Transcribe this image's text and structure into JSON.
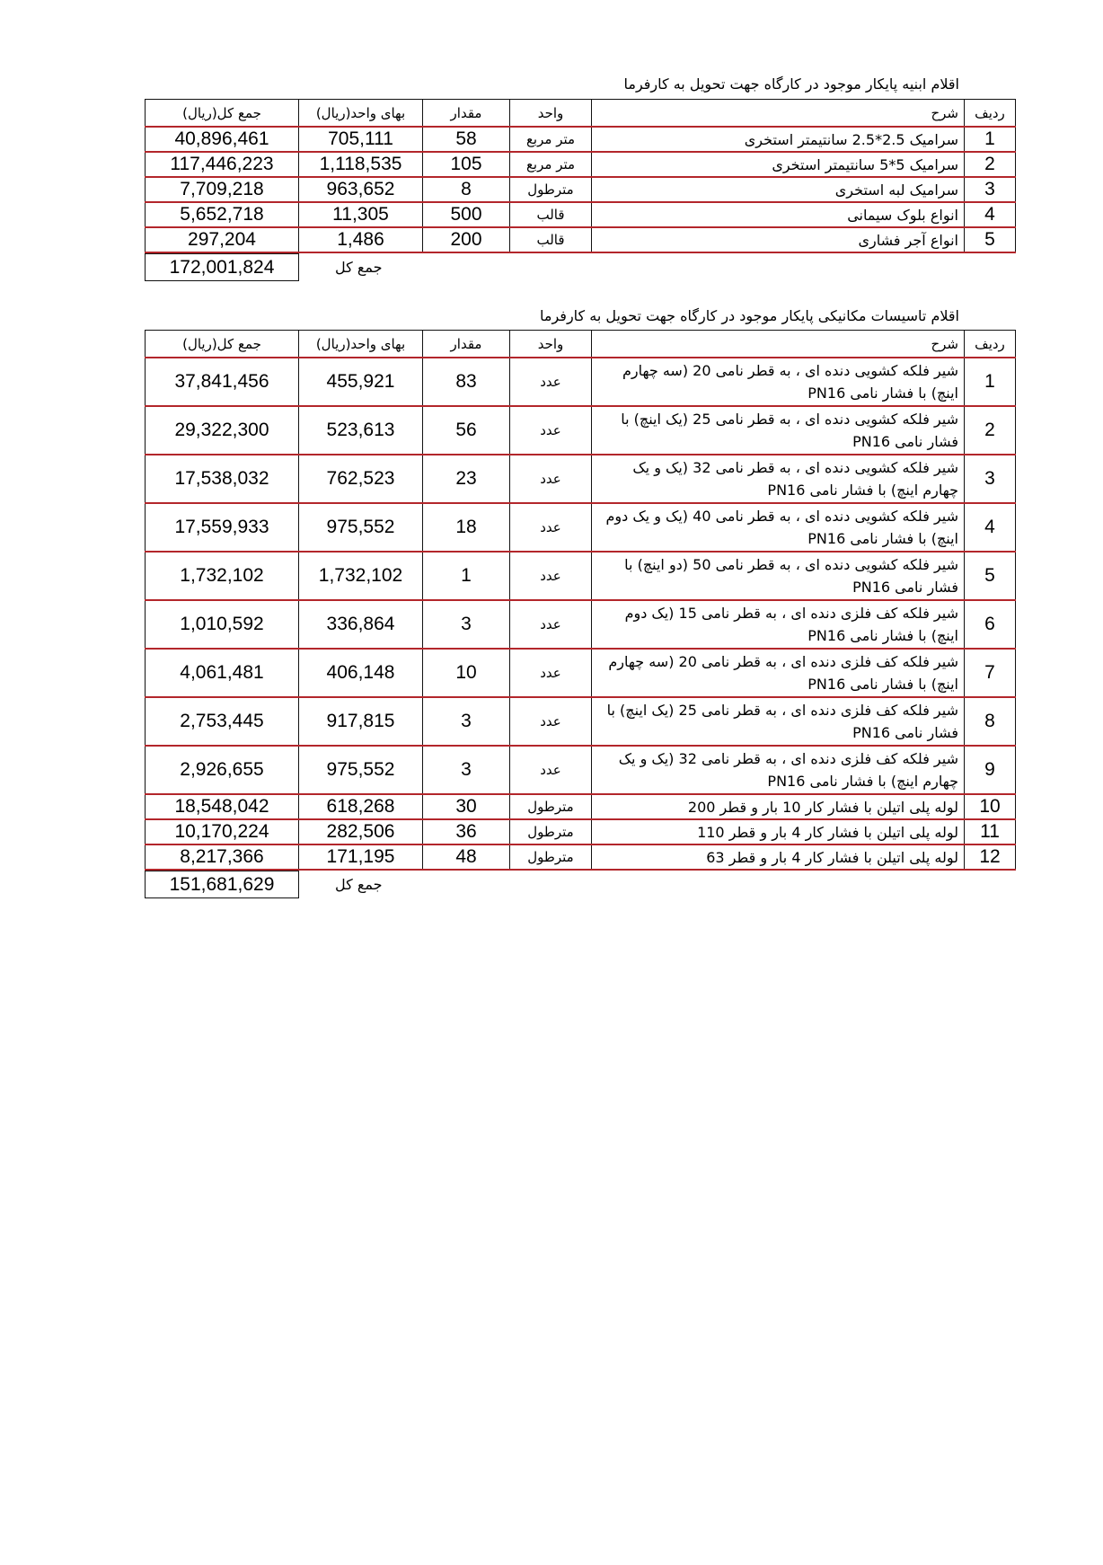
{
  "table1": {
    "title": "اقلام ابنیه پایکار موجود در کارگاه جهت تحویل به کارفرما",
    "headers": {
      "radif": "ردیف",
      "desc": "شرح",
      "unit": "واحد",
      "qty": "مقدار",
      "unit_price": "بهای واحد(ریال)",
      "total": "جمع کل(ریال)"
    },
    "rows": [
      {
        "radif": "1",
        "desc": "سرامیک 2.5*2.5 سانتیمتر استخری",
        "unit": "متر مربع",
        "qty": "58",
        "unit_price": "705,111",
        "total": "40,896,461"
      },
      {
        "radif": "2",
        "desc": "سرامیک 5*5 سانتیمتر استخری",
        "unit": "متر مربع",
        "qty": "105",
        "unit_price": "1,118,535",
        "total": "117,446,223"
      },
      {
        "radif": "3",
        "desc": "سرامیک لبه استخری",
        "unit": "مترطول",
        "qty": "8",
        "unit_price": "963,652",
        "total": "7,709,218"
      },
      {
        "radif": "4",
        "desc": "انواع بلوک سیمانی",
        "unit": "قالب",
        "qty": "500",
        "unit_price": "11,305",
        "total": "5,652,718"
      },
      {
        "radif": "5",
        "desc": "انواع آجر فشاری",
        "unit": "قالب",
        "qty": "200",
        "unit_price": "1,486",
        "total": "297,204"
      }
    ],
    "grand_total_label": "جمع کل",
    "grand_total": "172,001,824"
  },
  "table2": {
    "title": "اقلام تاسیسات مکانیکی پایکار موجود در کارگاه جهت تحویل به کارفرما",
    "headers": {
      "radif": "ردیف",
      "desc": "شرح",
      "unit": "واحد",
      "qty": "مقدار",
      "unit_price": "بهای واحد(ریال)",
      "total": "جمع کل(ریال)"
    },
    "rows": [
      {
        "radif": "1",
        "desc": "شیر فلکه کشویی دنده ای ، به قطر نامی 20 (سه چهارم اینچ) با فشار نامی PN16",
        "unit": "عدد",
        "qty": "83",
        "unit_price": "455,921",
        "total": "37,841,456"
      },
      {
        "radif": "2",
        "desc": "شیر فلکه کشویی دنده ای ، به قطر نامی 25 (یک اینچ) با فشار نامی PN16",
        "unit": "عدد",
        "qty": "56",
        "unit_price": "523,613",
        "total": "29,322,300"
      },
      {
        "radif": "3",
        "desc": "شیر فلکه کشویی دنده ای ، به قطر نامی 32 (یک و یک چهارم اینچ) با فشار نامی PN16",
        "unit": "عدد",
        "qty": "23",
        "unit_price": "762,523",
        "total": "17,538,032"
      },
      {
        "radif": "4",
        "desc": "شیر فلکه کشویی دنده ای ، به قطر نامی 40 (یک و یک دوم اینچ) با فشار نامی PN16",
        "unit": "عدد",
        "qty": "18",
        "unit_price": "975,552",
        "total": "17,559,933"
      },
      {
        "radif": "5",
        "desc": "شیر فلکه کشویی دنده ای ، به قطر نامی 50 (دو اینچ) با فشار نامی PN16",
        "unit": "عدد",
        "qty": "1",
        "unit_price": "1,732,102",
        "total": "1,732,102"
      },
      {
        "radif": "6",
        "desc": "شیر فلکه کف فلزی دنده ای ، به قطر نامی 15 (یک دوم اینچ) با فشار نامی PN16",
        "unit": "عدد",
        "qty": "3",
        "unit_price": "336,864",
        "total": "1,010,592"
      },
      {
        "radif": "7",
        "desc": "شیر فلکه کف فلزی دنده ای ، به قطر نامی 20 (سه چهارم اینچ) با فشار نامی PN16",
        "unit": "عدد",
        "qty": "10",
        "unit_price": "406,148",
        "total": "4,061,481"
      },
      {
        "radif": "8",
        "desc": "شیر فلکه کف فلزی دنده ای ، به قطر نامی 25 (یک اینچ) با فشار نامی PN16",
        "unit": "عدد",
        "qty": "3",
        "unit_price": "917,815",
        "total": "2,753,445"
      },
      {
        "radif": "9",
        "desc": "شیر فلکه کف فلزی دنده ای ، به قطر نامی 32 (یک و یک چهارم اینچ) با فشار نامی PN16",
        "unit": "عدد",
        "qty": "3",
        "unit_price": "975,552",
        "total": "2,926,655"
      },
      {
        "radif": "10",
        "desc": "لوله پلی اتیلن با فشار کار 10 بار و قطر 200",
        "unit": "مترطول",
        "qty": "30",
        "unit_price": "618,268",
        "total": "18,548,042"
      },
      {
        "radif": "11",
        "desc": "لوله پلی اتیلن با فشار کار 4 بار و قطر 110",
        "unit": "مترطول",
        "qty": "36",
        "unit_price": "282,506",
        "total": "10,170,224"
      },
      {
        "radif": "12",
        "desc": "لوله پلی اتیلن با فشار کار 4 بار و قطر 63",
        "unit": "مترطول",
        "qty": "48",
        "unit_price": "171,195",
        "total": "8,217,366"
      }
    ],
    "grand_total_label": "جمع کل",
    "grand_total": "151,681,629"
  }
}
